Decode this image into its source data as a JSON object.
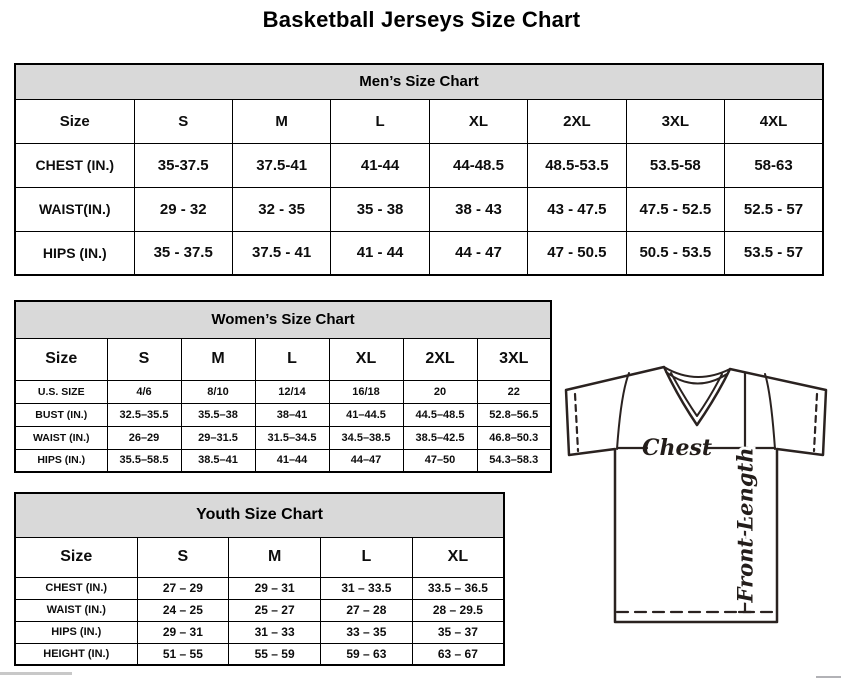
{
  "page": {
    "title": "Basketball Jerseys Size Chart"
  },
  "colors": {
    "table_header_bg": "#d9d9d9",
    "table_border": "#000000",
    "diagram_stroke": "#2a2220"
  },
  "tables": {
    "mens": {
      "title": "Men’s Size Chart",
      "columns": [
        "Size",
        "S",
        "M",
        "L",
        "XL",
        "2XL",
        "3XL",
        "4XL"
      ],
      "rows": [
        {
          "label": "CHEST (IN.)",
          "values": [
            "35-37.5",
            "37.5-41",
            "41-44",
            "44-48.5",
            "48.5-53.5",
            "53.5-58",
            "58-63"
          ]
        },
        {
          "label": "WAIST(IN.)",
          "values": [
            "29 - 32",
            "32 - 35",
            "35 - 38",
            "38 - 43",
            "43 - 47.5",
            "47.5 - 52.5",
            "52.5 - 57"
          ]
        },
        {
          "label": "HIPS (IN.)",
          "values": [
            "35 - 37.5",
            "37.5 - 41",
            "41 - 44",
            "44 - 47",
            "47 - 50.5",
            "50.5 - 53.5",
            "53.5 - 57"
          ]
        }
      ]
    },
    "womens": {
      "title": "Women’s Size Chart",
      "columns": [
        "Size",
        "S",
        "M",
        "L",
        "XL",
        "2XL",
        "3XL"
      ],
      "rows": [
        {
          "label": "U.S. SIZE",
          "values": [
            "4/6",
            "8/10",
            "12/14",
            "16/18",
            "20",
            "22"
          ]
        },
        {
          "label": "BUST (IN.)",
          "values": [
            "32.5–35.5",
            "35.5–38",
            "38–41",
            "41–44.5",
            "44.5–48.5",
            "52.8–56.5"
          ]
        },
        {
          "label": "WAIST (IN.)",
          "values": [
            "26–29",
            "29–31.5",
            "31.5–34.5",
            "34.5–38.5",
            "38.5–42.5",
            "46.8–50.3"
          ]
        },
        {
          "label": "HIPS (IN.)",
          "values": [
            "35.5–58.5",
            "38.5–41",
            "41–44",
            "44–47",
            "47–50",
            "54.3–58.3"
          ]
        }
      ]
    },
    "youth": {
      "title": "Youth Size Chart",
      "columns": [
        "Size",
        "S",
        "M",
        "L",
        "XL"
      ],
      "rows": [
        {
          "label": "CHEST (IN.)",
          "values": [
            "27 – 29",
            "29 – 31",
            "31 – 33.5",
            "33.5 – 36.5"
          ]
        },
        {
          "label": "WAIST (IN.)",
          "values": [
            "24 – 25",
            "25 – 27",
            "27 – 28",
            "28 – 29.5"
          ]
        },
        {
          "label": "HIPS (IN.)",
          "values": [
            "29 – 31",
            "31 – 33",
            "33 – 35",
            "35 – 37"
          ]
        },
        {
          "label": "HEIGHT (IN.)",
          "values": [
            "51 – 55",
            "55 – 59",
            "59 – 63",
            "63 – 67"
          ]
        }
      ]
    }
  },
  "diagram": {
    "chest_label": "Chest",
    "front_length_label": "Front Length"
  }
}
